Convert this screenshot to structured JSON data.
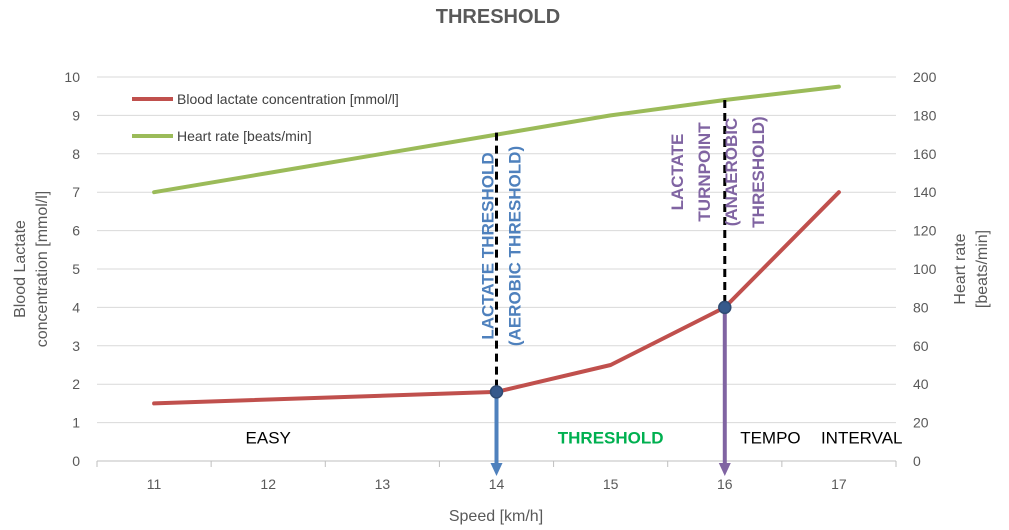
{
  "chart_data": {
    "type": "line",
    "title": "THRESHOLD",
    "xlabel": "Speed [km/h]",
    "ylabel_left": [
      "Blood Lactate",
      "concentration [mmol/l]"
    ],
    "ylabel_right": [
      "Heart rate",
      "[beats/min]"
    ],
    "x": [
      11,
      12,
      13,
      14,
      15,
      16,
      17
    ],
    "x_ticks": [
      "11",
      "12",
      "13",
      "14",
      "15",
      "16",
      "17"
    ],
    "xlim": [
      10.5,
      17.5
    ],
    "ylim_left": [
      0,
      10
    ],
    "ylim_right": [
      0,
      200
    ],
    "y_ticks_left": [
      "0",
      "1",
      "2",
      "3",
      "4",
      "5",
      "6",
      "7",
      "8",
      "9",
      "10"
    ],
    "y_ticks_right": [
      "0",
      "20",
      "40",
      "60",
      "80",
      "100",
      "120",
      "140",
      "160",
      "180",
      "200"
    ],
    "grid": true,
    "legend_position": "top-left",
    "series": [
      {
        "name": "Blood lactate concentration [mmol/l]",
        "axis": "left",
        "color": "#c0504d",
        "x": [
          11,
          14,
          15,
          16,
          17
        ],
        "values": [
          1.5,
          1.8,
          2.5,
          4.0,
          7.0
        ]
      },
      {
        "name": "Heart rate [beats/min]",
        "axis": "right",
        "color": "#9bbb59",
        "x": [
          11,
          12,
          13,
          14,
          15,
          16,
          17
        ],
        "values": [
          140,
          150,
          160,
          170,
          180,
          188,
          195
        ]
      }
    ],
    "thresholds": [
      {
        "x": 14,
        "y": 1.8,
        "label_lines": [
          "LACTATE THRESHOLD",
          "(AEROBIC THRESHOLD)"
        ],
        "color": "#4f81bd",
        "dash_top": 8.55
      },
      {
        "x": 16,
        "y": 4.0,
        "label_lines": [
          "LACTATE",
          "TURNPOINT",
          "(ANAEROBIC",
          "THRESHOLD)"
        ],
        "color": "#8064a2",
        "dash_top": 9.4
      }
    ],
    "zones": [
      {
        "label": "EASY",
        "x": 12.0,
        "color": "#000000",
        "bold": false
      },
      {
        "label": "THRESHOLD",
        "x": 15.0,
        "color": "#00b050",
        "bold": true
      },
      {
        "label": "TEMPO",
        "x": 16.4,
        "color": "#000000",
        "bold": false
      },
      {
        "label": "INTERVAL",
        "x": 17.2,
        "color": "#000000",
        "bold": false
      }
    ],
    "zone_label_y": 0.45,
    "colors": {
      "axis_text": "#595959",
      "gridline": "#d9d9d9",
      "marker_fill": "#375a8c",
      "marker_stroke": "#2f4b73"
    }
  }
}
